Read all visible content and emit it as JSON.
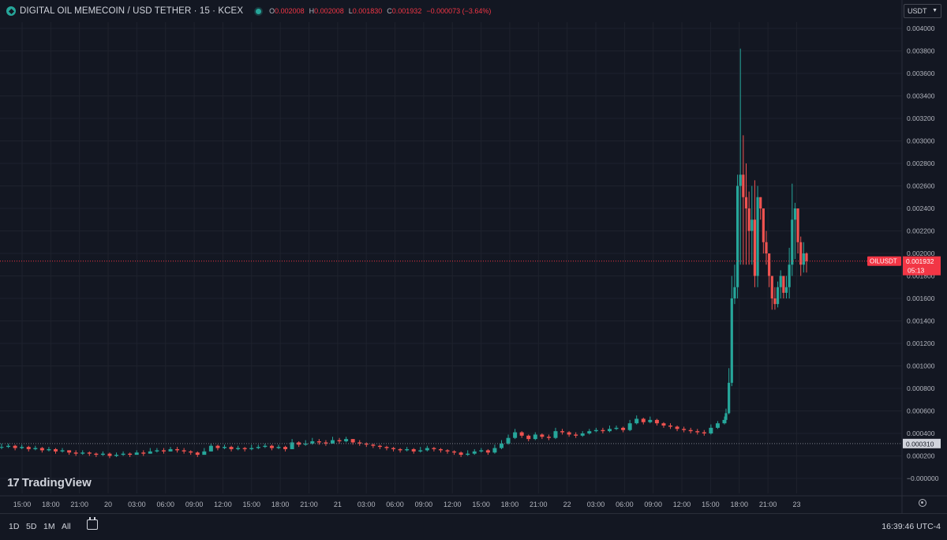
{
  "header": {
    "symbol": "DIGITAL OIL MEMECOIN / USD TETHER · 15 · KCEX",
    "open_key": "O",
    "open": "0.002008",
    "high_key": "H",
    "high": "0.002008",
    "low_key": "L",
    "low": "0.001830",
    "close_key": "C",
    "close": "0.001932",
    "change": "−0.000073 (−3.64%)"
  },
  "currency_select": {
    "value": "USDT"
  },
  "brand": "TradingView",
  "last_price": {
    "ticker": "OILUSDT",
    "price": "0.001932",
    "countdown": "05:13"
  },
  "ref_price": {
    "value": "0.000310"
  },
  "bottom_bar": {
    "timeframes": [
      "1D",
      "5D",
      "1M",
      "All"
    ],
    "clock": "16:39:46 UTC-4"
  },
  "colors": {
    "up": "#26a69a",
    "down": "#ef5350",
    "background": "#131722",
    "grid": "#1e222d",
    "last_price": "#f23645"
  },
  "chart_data": {
    "type": "candlestick",
    "y_axis_ticks": [
      "0.004000",
      "0.003800",
      "0.003600",
      "0.003400",
      "0.003200",
      "0.003000",
      "0.002800",
      "0.002600",
      "0.002400",
      "0.002200",
      "0.002000",
      "0.001800",
      "0.001600",
      "0.001400",
      "0.001200",
      "0.001000",
      "0.000800",
      "0.000600",
      "0.000400",
      "0.000200",
      "−0.000000"
    ],
    "ylim": [
      -0.0002,
      0.0041
    ],
    "x_axis_ticks": [
      "15:00",
      "18:00",
      "21:00",
      "20",
      "03:00",
      "06:00",
      "09:00",
      "12:00",
      "15:00",
      "18:00",
      "21:00",
      "21",
      "03:00",
      "06:00",
      "09:00",
      "12:00",
      "15:00",
      "18:00",
      "21:00",
      "22",
      "03:00",
      "06:00",
      "09:00",
      "12:00",
      "15:00",
      "18:00",
      "21:00",
      "23"
    ],
    "grid": true,
    "last_price": 0.001932,
    "ref_price": 0.00031,
    "closes": [
      0.00028,
      0.00029,
      0.00027,
      0.00028,
      0.00026,
      0.00027,
      0.00025,
      0.00026,
      0.00024,
      0.00025,
      0.00023,
      0.00022,
      0.00023,
      0.00022,
      0.00021,
      0.00022,
      0.0002,
      0.00021,
      0.00022,
      0.00021,
      0.00023,
      0.00022,
      0.00024,
      0.00025,
      0.00024,
      0.00026,
      0.00025,
      0.00024,
      0.00023,
      0.00021,
      0.00024,
      0.00029,
      0.00027,
      0.00028,
      0.00026,
      0.00027,
      0.00026,
      0.00027,
      0.00028,
      0.00029,
      0.00027,
      0.00028,
      0.00026,
      0.00032,
      0.0003,
      0.00031,
      0.00033,
      0.00032,
      0.00031,
      0.00034,
      0.00033,
      0.00035,
      0.00032,
      0.00031,
      0.0003,
      0.00029,
      0.00028,
      0.00027,
      0.00026,
      0.00025,
      0.00026,
      0.00024,
      0.00025,
      0.00027,
      0.00026,
      0.00025,
      0.00024,
      0.00023,
      0.00021,
      0.00022,
      0.00024,
      0.00025,
      0.00023,
      0.00027,
      0.00031,
      0.00036,
      0.00041,
      0.00038,
      0.00035,
      0.00039,
      0.00037,
      0.00036,
      0.00042,
      0.00041,
      0.00039,
      0.00038,
      0.0004,
      0.00042,
      0.00043,
      0.00042,
      0.00044,
      0.00045,
      0.00043,
      0.00049,
      0.00053,
      0.0005,
      0.00052,
      0.00049,
      0.00047,
      0.00046,
      0.00044,
      0.00043,
      0.00042,
      0.00041,
      0.0004,
      0.00045,
      0.00049,
      0.00052,
      0.00058,
      0.00085,
      0.0016,
      0.0017,
      0.0026,
      0.0027,
      0.0025,
      0.0024,
      0.0022,
      0.0023,
      0.0018,
      0.0025,
      0.0024,
      0.0021,
      0.002,
      0.0018,
      0.0016,
      0.00155,
      0.0017,
      0.0018,
      0.00165,
      0.0017,
      0.0019,
      0.0023,
      0.0024,
      0.0021,
      0.0019,
      0.002,
      0.001932
    ],
    "highs": [
      0.00031,
      0.00031,
      0.0003,
      0.0003,
      0.00029,
      0.00029,
      0.00028,
      0.00028,
      0.00027,
      0.00027,
      0.00025,
      0.00025,
      0.00025,
      0.00024,
      0.00023,
      0.00024,
      0.00023,
      0.00023,
      0.00024,
      0.00023,
      0.00025,
      0.00025,
      0.00027,
      0.00027,
      0.00027,
      0.00028,
      0.00028,
      0.00027,
      0.00025,
      0.00024,
      0.00027,
      0.00031,
      0.0003,
      0.0003,
      0.00029,
      0.00029,
      0.00028,
      0.0003,
      0.0003,
      0.00031,
      0.0003,
      0.0003,
      0.00029,
      0.00035,
      0.00033,
      0.00034,
      0.00036,
      0.00035,
      0.00034,
      0.00037,
      0.00036,
      0.00037,
      0.00035,
      0.00034,
      0.00032,
      0.00031,
      0.0003,
      0.00029,
      0.00028,
      0.00027,
      0.00028,
      0.00027,
      0.00028,
      0.00029,
      0.00028,
      0.00027,
      0.00026,
      0.00025,
      0.00024,
      0.00025,
      0.00026,
      0.00027,
      0.00026,
      0.0003,
      0.00034,
      0.00039,
      0.00044,
      0.00042,
      0.00039,
      0.00041,
      0.0004,
      0.00039,
      0.00045,
      0.00044,
      0.00042,
      0.00041,
      0.00042,
      0.00044,
      0.00045,
      0.00045,
      0.00047,
      0.00047,
      0.00046,
      0.00052,
      0.00056,
      0.00054,
      0.00055,
      0.00053,
      0.0005,
      0.00049,
      0.00047,
      0.00046,
      0.00045,
      0.00044,
      0.00043,
      0.00048,
      0.00051,
      0.00055,
      0.00062,
      0.00098,
      0.0018,
      0.0019,
      0.0027,
      0.00382,
      0.00305,
      0.0028,
      0.00255,
      0.0026,
      0.00265,
      0.0026,
      0.0025,
      0.0024,
      0.0022,
      0.002,
      0.0018,
      0.0017,
      0.00175,
      0.00185,
      0.0018,
      0.0018,
      0.00205,
      0.00262,
      0.00245,
      0.0024,
      0.00215,
      0.0021,
      0.00201
    ],
    "lows": [
      0.00026,
      0.00027,
      0.00025,
      0.00026,
      0.00024,
      0.00025,
      0.00023,
      0.00024,
      0.00022,
      0.00023,
      0.00021,
      0.0002,
      0.00021,
      0.0002,
      0.00019,
      0.0002,
      0.00018,
      0.00019,
      0.0002,
      0.00019,
      0.00021,
      0.0002,
      0.00022,
      0.00023,
      0.00022,
      0.00024,
      0.00023,
      0.00022,
      0.00021,
      0.00019,
      0.00021,
      0.00026,
      0.00025,
      0.00026,
      0.00024,
      0.00025,
      0.00024,
      0.00025,
      0.00026,
      0.00027,
      0.00025,
      0.00026,
      0.00024,
      0.00026,
      0.00028,
      0.00029,
      0.0003,
      0.0003,
      0.00029,
      0.00031,
      0.00031,
      0.00032,
      0.0003,
      0.00029,
      0.00028,
      0.00027,
      0.00026,
      0.00025,
      0.00024,
      0.00023,
      0.00024,
      0.00022,
      0.00023,
      0.00024,
      0.00024,
      0.00023,
      0.00022,
      0.00021,
      0.00019,
      0.0002,
      0.00021,
      0.00023,
      0.00021,
      0.00022,
      0.00026,
      0.0003,
      0.00035,
      0.00036,
      0.00033,
      0.00034,
      0.00035,
      0.00034,
      0.00035,
      0.00039,
      0.00037,
      0.00036,
      0.00037,
      0.00039,
      0.00041,
      0.0004,
      0.00041,
      0.00043,
      0.00041,
      0.00042,
      0.00048,
      0.00048,
      0.00049,
      0.00047,
      0.00045,
      0.00044,
      0.00042,
      0.00041,
      0.0004,
      0.00039,
      0.00038,
      0.00039,
      0.00044,
      0.00048,
      0.0005,
      0.00057,
      0.00082,
      0.00155,
      0.0016,
      0.0019,
      0.0019,
      0.0019,
      0.0019,
      0.0019,
      0.0017,
      0.0017,
      0.0023,
      0.002,
      0.0019,
      0.0017,
      0.0015,
      0.0015,
      0.00152,
      0.0016,
      0.0016,
      0.0016,
      0.0016,
      0.0018,
      0.00195,
      0.002,
      0.0018,
      0.00183,
      0.00183
    ]
  }
}
